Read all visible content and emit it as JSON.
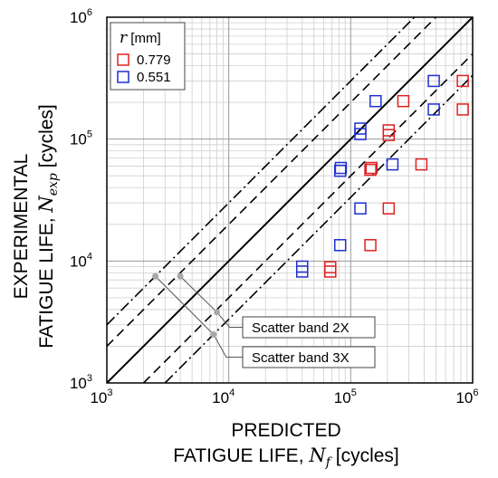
{
  "chart_data": {
    "type": "scatter",
    "xscale": "log",
    "yscale": "log",
    "xlim": [
      1000,
      1000000
    ],
    "ylim": [
      1000,
      1000000
    ],
    "grid": true,
    "legend_position": "top-left",
    "xlabel": {
      "line1": "PREDICTED",
      "line2_prefix": "FATIGUE LIFE, ",
      "symbol": "N",
      "subscript": "f",
      "unit": " [cycles]"
    },
    "ylabel": {
      "line1": "EXPERIMENTAL",
      "line2_prefix": "FATIGUE LIFE, ",
      "symbol": "N",
      "subscript": "exp",
      "unit": " [cycles]"
    },
    "ticks": [
      {
        "base": "10",
        "exp": "3",
        "value": 1000
      },
      {
        "base": "10",
        "exp": "4",
        "value": 10000
      },
      {
        "base": "10",
        "exp": "5",
        "value": 100000
      },
      {
        "base": "10",
        "exp": "6",
        "value": 1000000
      }
    ],
    "legend": {
      "title_symbol": "r",
      "title_unit": " [mm]"
    },
    "series": [
      {
        "name": "0.779",
        "color": "#e02020",
        "marker": "open-square",
        "points": [
          {
            "x": 68000,
            "y": 8200
          },
          {
            "x": 68000,
            "y": 8900
          },
          {
            "x": 145000,
            "y": 13500
          },
          {
            "x": 205000,
            "y": 27000
          },
          {
            "x": 145000,
            "y": 56000
          },
          {
            "x": 148000,
            "y": 58000
          },
          {
            "x": 380000,
            "y": 62000
          },
          {
            "x": 205000,
            "y": 108000
          },
          {
            "x": 205000,
            "y": 118000
          },
          {
            "x": 270000,
            "y": 205000
          },
          {
            "x": 830000,
            "y": 175000
          },
          {
            "x": 830000,
            "y": 300000
          }
        ]
      },
      {
        "name": "0.551",
        "color": "#1f2fd0",
        "marker": "open-square",
        "points": [
          {
            "x": 40000,
            "y": 8200
          },
          {
            "x": 40000,
            "y": 9000
          },
          {
            "x": 82000,
            "y": 13500
          },
          {
            "x": 120000,
            "y": 27000
          },
          {
            "x": 82000,
            "y": 55000
          },
          {
            "x": 83000,
            "y": 58000
          },
          {
            "x": 220000,
            "y": 62000
          },
          {
            "x": 120000,
            "y": 110000
          },
          {
            "x": 120000,
            "y": 122000
          },
          {
            "x": 160000,
            "y": 205000
          },
          {
            "x": 480000,
            "y": 175000
          },
          {
            "x": 480000,
            "y": 300000
          }
        ]
      }
    ],
    "reference_lines": [
      {
        "factor": 1,
        "style": "solid"
      },
      {
        "factor": 2,
        "style": "dashed"
      },
      {
        "factor": 0.5,
        "style": "dashed"
      },
      {
        "factor": 3,
        "style": "dash-dot"
      },
      {
        "factor": 0.3333,
        "style": "dash-dot"
      }
    ],
    "annotations": [
      {
        "text": "Scatter band 2X",
        "pointer_start": {
          "x": 4000,
          "y": 7500
        },
        "pointer_end": {
          "x": 8000,
          "y": 3800
        }
      },
      {
        "text": "Scatter band 3X",
        "pointer_start": {
          "x": 2500,
          "y": 7500
        },
        "pointer_end": {
          "x": 7500,
          "y": 2500
        }
      }
    ]
  }
}
